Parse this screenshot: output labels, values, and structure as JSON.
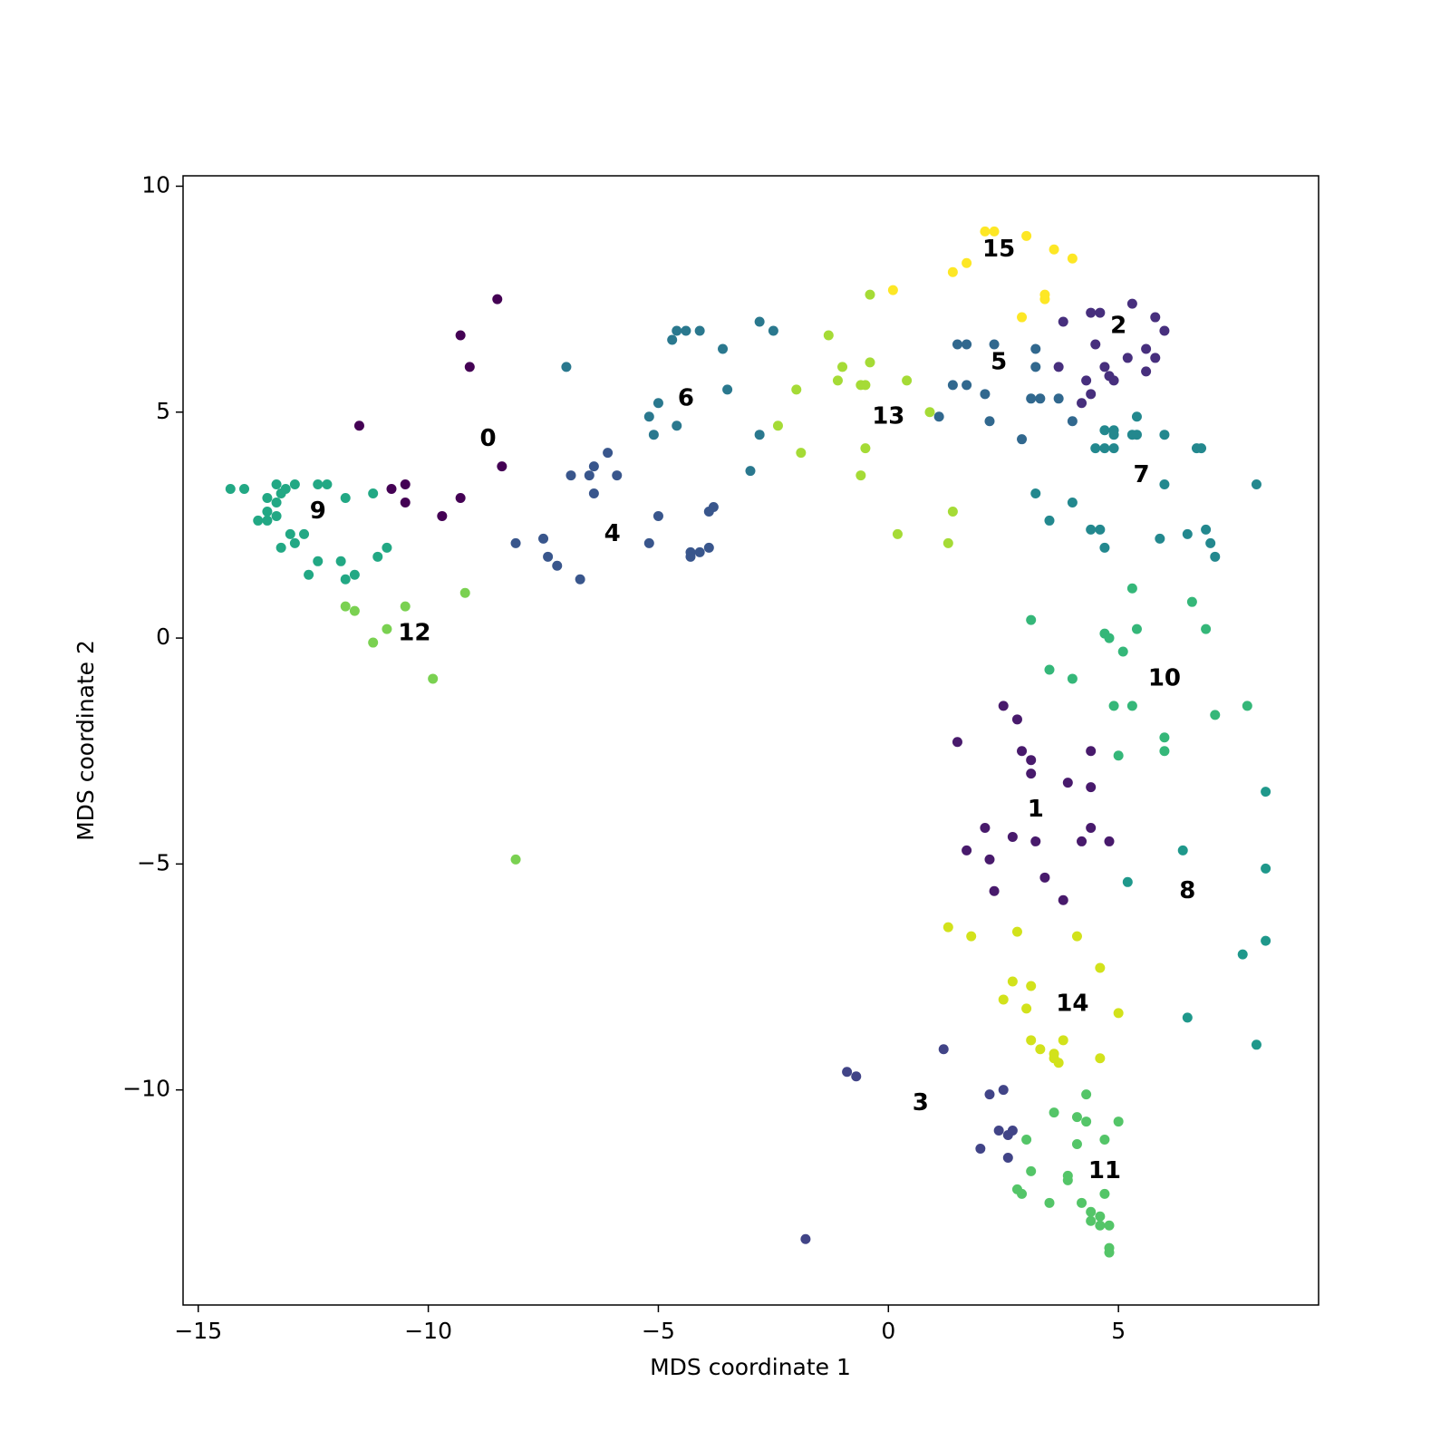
{
  "chart_data": {
    "type": "scatter",
    "xlabel": "MDS coordinate 1",
    "ylabel": "MDS coordinate 2",
    "xlim": [
      -15.33,
      9.35
    ],
    "ylim": [
      -14.76,
      10.23
    ],
    "xticks": [
      {
        "value": -15,
        "label": "−15"
      },
      {
        "value": -10,
        "label": "−10"
      },
      {
        "value": -5,
        "label": "−5"
      },
      0,
      5
    ],
    "yticks": [
      {
        "value": -10,
        "label": "−10"
      },
      {
        "value": -5,
        "label": "−5"
      },
      0,
      5,
      10
    ],
    "series": [
      {
        "name": "0",
        "color": "#440154",
        "centroid": [
          -8.7,
          4.4
        ],
        "x": [
          -8.5,
          -9.3,
          -9.1,
          -11.5,
          -10.8,
          -10.5,
          -10.5,
          -9.3,
          -9.7,
          -8.4
        ],
        "y": [
          7.5,
          6.7,
          6.0,
          4.7,
          3.3,
          3.4,
          3.0,
          3.1,
          2.7,
          3.8
        ]
      },
      {
        "name": "1",
        "color": "#481a6c",
        "centroid": [
          3.2,
          -3.8
        ],
        "x": [
          2.5,
          2.8,
          1.5,
          2.9,
          3.1,
          3.1,
          3.9,
          4.4,
          4.4,
          2.1,
          2.7,
          1.7,
          2.2,
          3.2,
          4.2,
          4.4,
          4.8,
          3.4,
          2.3,
          3.8
        ],
        "y": [
          -1.5,
          -1.8,
          -2.3,
          -2.5,
          -2.7,
          -3.0,
          -3.2,
          -2.5,
          -3.3,
          -4.2,
          -4.4,
          -4.7,
          -4.9,
          -4.5,
          -4.5,
          -4.2,
          -4.5,
          -5.3,
          -5.6,
          -5.8
        ]
      },
      {
        "name": "2",
        "color": "#472f7d",
        "centroid": [
          5.0,
          6.9
        ],
        "x": [
          4.4,
          4.6,
          5.3,
          5.8,
          3.8,
          6.0,
          4.5,
          5.6,
          4.7,
          5.2,
          5.8,
          3.7,
          4.8,
          4.9,
          5.6,
          4.3,
          4.4,
          4.2
        ],
        "y": [
          7.2,
          7.2,
          7.4,
          7.1,
          7.0,
          6.8,
          6.5,
          6.4,
          6.0,
          6.2,
          6.2,
          6.0,
          5.8,
          5.7,
          5.9,
          5.7,
          5.4,
          5.2
        ]
      },
      {
        "name": "3",
        "color": "#414487",
        "centroid": [
          0.7,
          -10.3
        ],
        "x": [
          -0.9,
          -0.7,
          1.2,
          2.2,
          2.5,
          2.4,
          2.6,
          2.7,
          2.0,
          2.6,
          -1.8
        ],
        "y": [
          -9.6,
          -9.7,
          -9.1,
          -10.1,
          -10.0,
          -10.9,
          -11.0,
          -10.9,
          -11.3,
          -11.5,
          -13.3
        ]
      },
      {
        "name": "4",
        "color": "#39568c",
        "centroid": [
          -6.0,
          2.3
        ],
        "x": [
          -6.1,
          -6.4,
          -6.9,
          -6.5,
          -5.9,
          -6.4,
          -5.0,
          -3.9,
          -3.8,
          -8.1,
          -7.5,
          -7.4,
          -7.2,
          -6.7,
          -5.2,
          -4.3,
          -4.1,
          -3.9,
          -4.3
        ],
        "y": [
          4.1,
          3.8,
          3.6,
          3.6,
          3.6,
          3.2,
          2.7,
          2.8,
          2.9,
          2.1,
          2.2,
          1.8,
          1.6,
          1.3,
          2.1,
          1.9,
          1.9,
          2.0,
          1.8
        ]
      },
      {
        "name": "5",
        "color": "#31688e",
        "centroid": [
          2.4,
          6.1
        ],
        "x": [
          1.5,
          1.7,
          2.3,
          3.2,
          3.2,
          1.4,
          1.7,
          2.1,
          3.3,
          3.1,
          3.7,
          1.1,
          2.2,
          4.0,
          2.9
        ],
        "y": [
          6.5,
          6.5,
          6.5,
          6.4,
          6.0,
          5.6,
          5.6,
          5.4,
          5.3,
          5.3,
          5.3,
          4.9,
          4.8,
          4.8,
          4.4
        ]
      },
      {
        "name": "6",
        "color": "#2a788e",
        "centroid": [
          -4.4,
          5.3
        ],
        "x": [
          -4.6,
          -4.4,
          -4.1,
          -4.7,
          -2.8,
          -2.5,
          -7.0,
          -3.6,
          -3.5,
          -5.0,
          -5.2,
          -4.6,
          -5.1,
          -2.8,
          -3.0
        ],
        "y": [
          6.8,
          6.8,
          6.8,
          6.6,
          7.0,
          6.8,
          6.0,
          6.4,
          5.5,
          5.2,
          4.9,
          4.7,
          4.5,
          4.5,
          3.7
        ]
      },
      {
        "name": "7",
        "color": "#23888e",
        "centroid": [
          5.5,
          3.6
        ],
        "x": [
          4.7,
          4.9,
          4.9,
          5.3,
          5.4,
          5.4,
          6.0,
          4.5,
          4.7,
          4.9,
          6.7,
          6.8,
          6.0,
          8.0,
          3.2,
          4.0,
          3.5,
          4.4,
          4.6,
          6.9,
          6.5,
          5.9,
          7.0,
          4.7,
          7.1
        ],
        "y": [
          4.6,
          4.6,
          4.5,
          4.5,
          4.5,
          4.9,
          4.5,
          4.2,
          4.2,
          4.2,
          4.2,
          4.2,
          3.4,
          3.4,
          3.2,
          3.0,
          2.6,
          2.4,
          2.4,
          2.4,
          2.3,
          2.2,
          2.1,
          2.0,
          1.8
        ]
      },
      {
        "name": "8",
        "color": "#1f988b",
        "centroid": [
          6.5,
          -5.6
        ],
        "x": [
          8.2,
          6.4,
          8.2,
          5.2,
          8.2,
          7.7,
          6.5,
          8.0
        ],
        "y": [
          -3.4,
          -4.7,
          -5.1,
          -5.4,
          -6.7,
          -7.0,
          -8.4,
          -9.0
        ]
      },
      {
        "name": "9",
        "color": "#22a884",
        "centroid": [
          -12.4,
          2.8
        ],
        "x": [
          -14.3,
          -14.0,
          -13.3,
          -12.9,
          -12.2,
          -12.4,
          -13.1,
          -13.2,
          -13.5,
          -13.3,
          -13.5,
          -13.3,
          -13.5,
          -13.7,
          -13.0,
          -12.7,
          -13.2,
          -12.9,
          -11.8,
          -11.2,
          -12.4,
          -11.9,
          -10.9,
          -11.1,
          -12.6,
          -11.6,
          -11.8
        ],
        "y": [
          3.3,
          3.3,
          3.4,
          3.4,
          3.4,
          3.4,
          3.3,
          3.2,
          3.1,
          3.0,
          2.8,
          2.7,
          2.6,
          2.6,
          2.3,
          2.3,
          2.0,
          2.1,
          3.1,
          3.2,
          1.7,
          1.7,
          2.0,
          1.8,
          1.4,
          1.4,
          1.3
        ]
      },
      {
        "name": "10",
        "color": "#35b779",
        "centroid": [
          6.0,
          -0.9
        ],
        "x": [
          5.3,
          6.6,
          3.1,
          4.7,
          4.8,
          5.4,
          6.9,
          5.1,
          3.5,
          4.0,
          4.9,
          5.3,
          7.8,
          7.1,
          6.0,
          5.0,
          6.0
        ],
        "y": [
          1.1,
          0.8,
          0.4,
          0.1,
          0.0,
          0.2,
          0.2,
          -0.3,
          -0.7,
          -0.9,
          -1.5,
          -1.5,
          -1.5,
          -1.7,
          -2.2,
          -2.6,
          -2.5
        ]
      },
      {
        "name": "11",
        "color": "#54c568",
        "centroid": [
          4.7,
          -11.8
        ],
        "x": [
          4.3,
          3.6,
          4.1,
          4.3,
          5.0,
          4.7,
          4.1,
          3.0,
          3.1,
          3.9,
          3.9,
          2.8,
          2.9,
          3.5,
          4.2,
          4.4,
          4.7,
          4.6,
          4.4,
          4.6,
          4.8,
          4.8,
          4.8
        ],
        "y": [
          -10.1,
          -10.5,
          -10.6,
          -10.7,
          -10.7,
          -11.1,
          -11.2,
          -11.1,
          -11.8,
          -11.9,
          -12.0,
          -12.2,
          -12.3,
          -12.5,
          -12.5,
          -12.7,
          -12.3,
          -12.8,
          -12.9,
          -13.0,
          -13.0,
          -13.5,
          -13.6
        ]
      },
      {
        "name": "12",
        "color": "#7ad151",
        "centroid": [
          -10.3,
          0.1
        ],
        "x": [
          -9.2,
          -10.5,
          -11.8,
          -11.6,
          -11.2,
          -10.9,
          -9.9,
          -8.1
        ],
        "y": [
          1.0,
          0.7,
          0.7,
          0.6,
          -0.1,
          0.2,
          -0.9,
          -4.9
        ]
      },
      {
        "name": "13",
        "color": "#a5db36",
        "centroid": [
          0.0,
          4.9
        ],
        "x": [
          -0.4,
          -1.3,
          -1.0,
          -0.4,
          -1.1,
          -0.6,
          -0.5,
          0.4,
          -2.0,
          0.9,
          -2.4,
          -1.9,
          -0.5,
          -0.6,
          1.4,
          0.2,
          1.3
        ],
        "y": [
          7.6,
          6.7,
          6.0,
          6.1,
          5.7,
          5.6,
          5.6,
          5.7,
          5.5,
          5.0,
          4.7,
          4.1,
          4.2,
          3.6,
          2.8,
          2.3,
          2.1
        ]
      },
      {
        "name": "14",
        "color": "#d2e21b",
        "centroid": [
          4.0,
          -8.1
        ],
        "x": [
          1.3,
          1.8,
          2.8,
          4.1,
          4.6,
          2.7,
          3.1,
          2.5,
          3.0,
          5.0,
          3.1,
          3.3,
          3.8,
          3.6,
          3.6,
          3.7,
          4.6
        ],
        "y": [
          -6.4,
          -6.6,
          -6.5,
          -6.6,
          -7.3,
          -7.6,
          -7.7,
          -8.0,
          -8.2,
          -8.3,
          -8.9,
          -9.1,
          -8.9,
          -9.2,
          -9.3,
          -9.4,
          -9.3
        ]
      },
      {
        "name": "15",
        "color": "#fde725",
        "centroid": [
          2.4,
          8.6
        ],
        "x": [
          2.1,
          2.3,
          3.0,
          3.6,
          4.0,
          1.7,
          1.4,
          0.1,
          3.4,
          3.4,
          2.9
        ],
        "y": [
          9.0,
          9.0,
          8.9,
          8.6,
          8.4,
          8.3,
          8.1,
          7.7,
          7.5,
          7.6,
          7.1
        ]
      }
    ]
  }
}
